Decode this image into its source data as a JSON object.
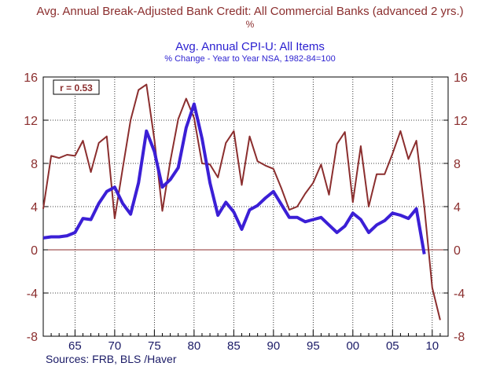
{
  "chart_data": {
    "type": "line",
    "title_1": "Avg. Annual Break-Adjusted Bank Credit: All Commercial Banks (advanced 2 yrs.)",
    "title_1_unit": "%",
    "title_2": "Avg. Annual CPI-U: All Items",
    "title_2_sub": "% Change - Year to Year    NSA, 1982-84=100",
    "annotation": "r = 0.53",
    "source": "Sources:  FRB, BLS /Haver",
    "xlim": [
      1961,
      2012
    ],
    "ylim": [
      -8,
      16
    ],
    "y_ticks": [
      16,
      12,
      8,
      4,
      0,
      -4,
      -8
    ],
    "y_tick_labels": [
      "16",
      "12",
      "8",
      "4",
      "0",
      "-4",
      "-8"
    ],
    "x_ticks": [
      1965,
      1970,
      1975,
      1980,
      1985,
      1990,
      1995,
      2000,
      2005,
      2010
    ],
    "x_tick_labels": [
      "65",
      "70",
      "75",
      "80",
      "85",
      "90",
      "95",
      "00",
      "05",
      "10"
    ],
    "colors": {
      "bank_credit": "#8b2e2e",
      "cpi": "#3b1fd6",
      "axis": "#8b2e2e"
    },
    "series": [
      {
        "name": "Bank Credit (advanced 2 yrs.)",
        "x": [
          1961,
          1962,
          1963,
          1964,
          1965,
          1966,
          1967,
          1968,
          1969,
          1970,
          1971,
          1972,
          1973,
          1974,
          1975,
          1976,
          1977,
          1978,
          1979,
          1980,
          1981,
          1982,
          1983,
          1984,
          1985,
          1986,
          1987,
          1988,
          1989,
          1990,
          1991,
          1992,
          1993,
          1994,
          1995,
          1996,
          1997,
          1998,
          1999,
          2000,
          2001,
          2002,
          2003,
          2004,
          2005,
          2006,
          2007,
          2008,
          2009,
          2010,
          2011
        ],
        "values": [
          3.8,
          8.7,
          8.5,
          8.8,
          8.7,
          10.1,
          7.2,
          9.9,
          10.5,
          2.9,
          7.5,
          12.0,
          14.8,
          15.3,
          10.2,
          3.6,
          8.2,
          12.1,
          14.0,
          12.2,
          8.0,
          7.9,
          6.7,
          9.9,
          11.0,
          6.0,
          10.5,
          8.2,
          7.8,
          7.5,
          5.7,
          3.7,
          4.0,
          5.2,
          6.2,
          7.9,
          5.1,
          9.8,
          10.9,
          4.4,
          9.6,
          4.0,
          7.0,
          7.0,
          8.9,
          11.0,
          8.4,
          10.1,
          4.0,
          -3.5,
          -6.5
        ]
      },
      {
        "name": "CPI-U",
        "x": [
          1961,
          1962,
          1963,
          1964,
          1965,
          1966,
          1967,
          1968,
          1969,
          1970,
          1971,
          1972,
          1973,
          1974,
          1975,
          1976,
          1977,
          1978,
          1979,
          1980,
          1981,
          1982,
          1983,
          1984,
          1985,
          1986,
          1987,
          1988,
          1989,
          1990,
          1991,
          1992,
          1993,
          1994,
          1995,
          1996,
          1997,
          1998,
          1999,
          2000,
          2001,
          2002,
          2003,
          2004,
          2005,
          2006,
          2007,
          2008,
          2009
        ],
        "values": [
          1.1,
          1.2,
          1.2,
          1.3,
          1.6,
          2.9,
          2.8,
          4.3,
          5.4,
          5.8,
          4.3,
          3.3,
          6.2,
          11.0,
          9.1,
          5.8,
          6.5,
          7.6,
          11.3,
          13.5,
          10.3,
          6.2,
          3.2,
          4.4,
          3.5,
          1.9,
          3.7,
          4.1,
          4.8,
          5.4,
          4.2,
          3.0,
          3.0,
          2.6,
          2.8,
          3.0,
          2.3,
          1.6,
          2.2,
          3.4,
          2.8,
          1.6,
          2.3,
          2.7,
          3.4,
          3.2,
          2.9,
          3.8,
          -0.4
        ]
      }
    ]
  }
}
